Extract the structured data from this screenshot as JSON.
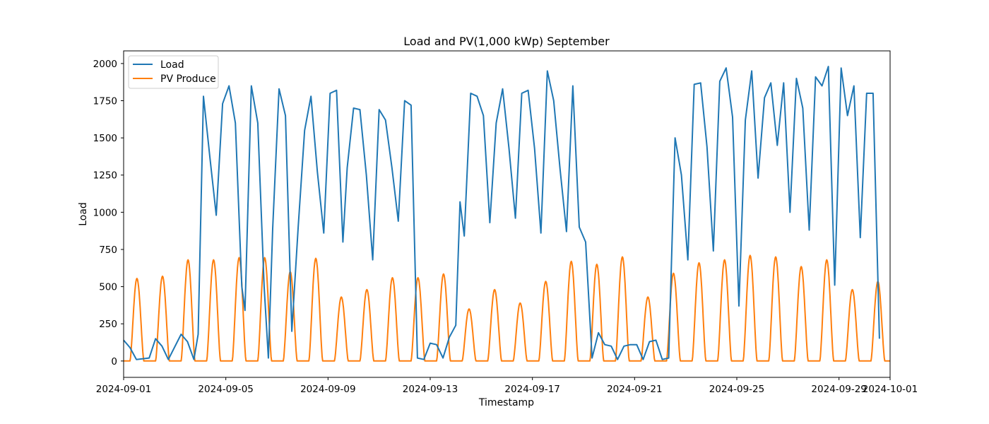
{
  "chart_data": {
    "type": "line",
    "title": "Load and PV(1,000 kWp) September",
    "xlabel": "Timestamp",
    "ylabel": "Load",
    "x_start": "2024-09-01",
    "x_end": "2024-10-01",
    "xlim": [
      "2024-09-01",
      "2024-10-01"
    ],
    "ylim": [
      -110,
      2085
    ],
    "x_ticks": [
      "2024-09-01",
      "2024-09-05",
      "2024-09-09",
      "2024-09-13",
      "2024-09-17",
      "2024-09-21",
      "2024-09-25",
      "2024-09-29",
      "2024-10-01"
    ],
    "y_ticks": [
      0,
      250,
      500,
      750,
      1000,
      1250,
      1500,
      1750,
      2000
    ],
    "grid": false,
    "legend": {
      "placement": "top-left",
      "entries": [
        "Load",
        "PV Produce"
      ]
    },
    "series": [
      {
        "name": "Load",
        "color": "#1f77b4",
        "points": [
          [
            "2024-09-01T00:00",
            140
          ],
          [
            "2024-09-01T06:00",
            90
          ],
          [
            "2024-09-01T12:00",
            10
          ],
          [
            "2024-09-02T00:00",
            20
          ],
          [
            "2024-09-02T06:00",
            150
          ],
          [
            "2024-09-02T12:00",
            100
          ],
          [
            "2024-09-02T18:00",
            10
          ],
          [
            "2024-09-03T06:00",
            180
          ],
          [
            "2024-09-03T12:00",
            130
          ],
          [
            "2024-09-03T18:00",
            10
          ],
          [
            "2024-09-03T22:00",
            180
          ],
          [
            "2024-09-04T03:00",
            1780
          ],
          [
            "2024-09-04T09:00",
            1370
          ],
          [
            "2024-09-04T15:00",
            980
          ],
          [
            "2024-09-04T21:00",
            1730
          ],
          [
            "2024-09-05T03:00",
            1850
          ],
          [
            "2024-09-05T09:00",
            1600
          ],
          [
            "2024-09-05T15:00",
            500
          ],
          [
            "2024-09-05T18:00",
            340
          ],
          [
            "2024-09-06T00:00",
            1850
          ],
          [
            "2024-09-06T06:00",
            1600
          ],
          [
            "2024-09-06T12:00",
            500
          ],
          [
            "2024-09-06T16:00",
            20
          ],
          [
            "2024-09-06T20:00",
            890
          ],
          [
            "2024-09-07T02:00",
            1830
          ],
          [
            "2024-09-07T08:00",
            1650
          ],
          [
            "2024-09-07T14:00",
            200
          ],
          [
            "2024-09-07T20:00",
            900
          ],
          [
            "2024-09-08T02:00",
            1550
          ],
          [
            "2024-09-08T08:00",
            1780
          ],
          [
            "2024-09-08T14:00",
            1270
          ],
          [
            "2024-09-08T20:00",
            860
          ],
          [
            "2024-09-09T02:00",
            1800
          ],
          [
            "2024-09-09T08:00",
            1820
          ],
          [
            "2024-09-09T14:00",
            800
          ],
          [
            "2024-09-09T18:00",
            1300
          ],
          [
            "2024-09-10T00:00",
            1700
          ],
          [
            "2024-09-10T06:00",
            1690
          ],
          [
            "2024-09-10T12:00",
            1250
          ],
          [
            "2024-09-10T18:00",
            680
          ],
          [
            "2024-09-11T00:00",
            1690
          ],
          [
            "2024-09-11T06:00",
            1620
          ],
          [
            "2024-09-11T12:00",
            1300
          ],
          [
            "2024-09-11T18:00",
            940
          ],
          [
            "2024-09-12T00:00",
            1750
          ],
          [
            "2024-09-12T06:00",
            1720
          ],
          [
            "2024-09-12T12:00",
            20
          ],
          [
            "2024-09-12T18:00",
            10
          ],
          [
            "2024-09-13T00:00",
            120
          ],
          [
            "2024-09-13T06:00",
            110
          ],
          [
            "2024-09-13T12:00",
            20
          ],
          [
            "2024-09-13T18:00",
            160
          ],
          [
            "2024-09-14T00:00",
            240
          ],
          [
            "2024-09-14T04:00",
            1070
          ],
          [
            "2024-09-14T08:00",
            840
          ],
          [
            "2024-09-14T14:00",
            1800
          ],
          [
            "2024-09-14T20:00",
            1780
          ],
          [
            "2024-09-15T02:00",
            1650
          ],
          [
            "2024-09-15T08:00",
            930
          ],
          [
            "2024-09-15T14:00",
            1600
          ],
          [
            "2024-09-15T20:00",
            1830
          ],
          [
            "2024-09-16T02:00",
            1430
          ],
          [
            "2024-09-16T08:00",
            960
          ],
          [
            "2024-09-16T14:00",
            1800
          ],
          [
            "2024-09-16T20:00",
            1820
          ],
          [
            "2024-09-17T02:00",
            1430
          ],
          [
            "2024-09-17T08:00",
            860
          ],
          [
            "2024-09-17T14:00",
            1950
          ],
          [
            "2024-09-17T20:00",
            1750
          ],
          [
            "2024-09-18T02:00",
            1290
          ],
          [
            "2024-09-18T08:00",
            870
          ],
          [
            "2024-09-18T14:00",
            1850
          ],
          [
            "2024-09-18T20:00",
            900
          ],
          [
            "2024-09-19T02:00",
            800
          ],
          [
            "2024-09-19T08:00",
            20
          ],
          [
            "2024-09-19T14:00",
            190
          ],
          [
            "2024-09-19T20:00",
            110
          ],
          [
            "2024-09-20T02:00",
            100
          ],
          [
            "2024-09-20T08:00",
            10
          ],
          [
            "2024-09-20T14:00",
            100
          ],
          [
            "2024-09-20T20:00",
            110
          ],
          [
            "2024-09-21T02:00",
            110
          ],
          [
            "2024-09-21T08:00",
            10
          ],
          [
            "2024-09-21T14:00",
            130
          ],
          [
            "2024-09-21T20:00",
            140
          ],
          [
            "2024-09-22T02:00",
            10
          ],
          [
            "2024-09-22T08:00",
            20
          ],
          [
            "2024-09-22T14:00",
            1500
          ],
          [
            "2024-09-22T20:00",
            1250
          ],
          [
            "2024-09-23T02:00",
            680
          ],
          [
            "2024-09-23T08:00",
            1860
          ],
          [
            "2024-09-23T14:00",
            1870
          ],
          [
            "2024-09-23T20:00",
            1440
          ],
          [
            "2024-09-24T02:00",
            740
          ],
          [
            "2024-09-24T08:00",
            1880
          ],
          [
            "2024-09-24T14:00",
            1970
          ],
          [
            "2024-09-24T20:00",
            1640
          ],
          [
            "2024-09-25T02:00",
            370
          ],
          [
            "2024-09-25T08:00",
            1620
          ],
          [
            "2024-09-25T14:00",
            1950
          ],
          [
            "2024-09-25T20:00",
            1230
          ],
          [
            "2024-09-26T02:00",
            1770
          ],
          [
            "2024-09-26T08:00",
            1870
          ],
          [
            "2024-09-26T14:00",
            1450
          ],
          [
            "2024-09-26T20:00",
            1870
          ],
          [
            "2024-09-27T02:00",
            1000
          ],
          [
            "2024-09-27T08:00",
            1900
          ],
          [
            "2024-09-27T14:00",
            1700
          ],
          [
            "2024-09-27T20:00",
            880
          ],
          [
            "2024-09-28T02:00",
            1910
          ],
          [
            "2024-09-28T08:00",
            1850
          ],
          [
            "2024-09-28T14:00",
            1980
          ],
          [
            "2024-09-28T20:00",
            510
          ],
          [
            "2024-09-29T02:00",
            1970
          ],
          [
            "2024-09-29T08:00",
            1650
          ],
          [
            "2024-09-29T14:00",
            1850
          ],
          [
            "2024-09-29T20:00",
            830
          ],
          [
            "2024-09-30T02:00",
            1800
          ],
          [
            "2024-09-30T08:00",
            1800
          ],
          [
            "2024-09-30T14:00",
            150
          ]
        ]
      },
      {
        "name": "PV Produce",
        "color": "#ff7f0e",
        "peaks": [
          [
            "2024-09-01",
            555
          ],
          [
            "2024-09-02",
            570
          ],
          [
            "2024-09-03",
            680
          ],
          [
            "2024-09-04",
            680
          ],
          [
            "2024-09-05",
            695
          ],
          [
            "2024-09-06",
            695
          ],
          [
            "2024-09-07",
            600
          ],
          [
            "2024-09-08",
            690
          ],
          [
            "2024-09-09",
            430
          ],
          [
            "2024-09-10",
            480
          ],
          [
            "2024-09-11",
            560
          ],
          [
            "2024-09-12",
            560
          ],
          [
            "2024-09-13",
            585
          ],
          [
            "2024-09-14",
            350
          ],
          [
            "2024-09-15",
            480
          ],
          [
            "2024-09-16",
            390
          ],
          [
            "2024-09-17",
            535
          ],
          [
            "2024-09-18",
            670
          ],
          [
            "2024-09-19",
            650
          ],
          [
            "2024-09-20",
            700
          ],
          [
            "2024-09-21",
            430
          ],
          [
            "2024-09-22",
            590
          ],
          [
            "2024-09-23",
            660
          ],
          [
            "2024-09-24",
            680
          ],
          [
            "2024-09-25",
            710
          ],
          [
            "2024-09-26",
            700
          ],
          [
            "2024-09-27",
            635
          ],
          [
            "2024-09-28",
            680
          ],
          [
            "2024-09-29",
            480
          ],
          [
            "2024-09-30",
            535
          ]
        ]
      }
    ]
  }
}
